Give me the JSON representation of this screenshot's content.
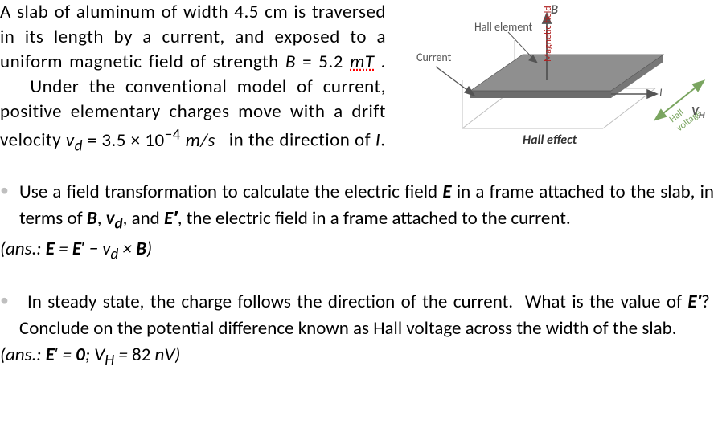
{
  "intro": {
    "line": "A slab of aluminum of width 4.5&nbsp;cm is traversed in its length by a current, and exposed to a uniform magnetic field of strength <span style='font-style:italic'>B</span>&nbsp;=&nbsp;5.2&nbsp;<span style='font-style:italic'><span style='text-decoration: underline dotted red;'>mT</span></span>&nbsp;. &nbsp;&nbsp;&nbsp;Under the conventional model of current, positive elementary charges move with a drift velocity <span class='nowrap'><span style='font-style:italic'>v<sub>d</sub></span>&nbsp;=&nbsp;3.5&nbsp;×&nbsp;10<sup>&minus;4</sup>&nbsp;<span style='font-style:italic'>m/s</span></span> &nbsp;&nbsp;in the direction of <span style='font-style:italic'>I</span>."
  },
  "q1": {
    "text": "Use a field transformation to calculate the electric field <b><i>E</i></b> in a frame attached to the slab, in terms of <b><i>B</i></b>, <b><i>v<sub>d</sub></i></b>, and <b><i>E&prime;</i></b>, the electric field in a frame attached to the current.",
    "ans": "(ans.: <b>E</b> = <b>E</b><span style='font-style:normal'>&prime;</span> &minus; v<sub>d</sub> × <b>B</b>)"
  },
  "q2": {
    "text": "In steady state, the charge follows the direction of the current.&nbsp; What is the value of <b><i>E&prime;</i></b>?&nbsp; Conclude on the potential difference known as Hall voltage across the width of the slab.",
    "ans": "(ans.: <b>E</b><span style='font-style:normal'>&prime;</span> = <b>0</b>; V<sub>H</sub> = <span style='font-style:normal'>82</span> nV)"
  },
  "figure": {
    "labels": {
      "B": "B",
      "hall_element": "Hall element",
      "current": "Current",
      "I": "I",
      "magnetic_field": "Magnetic field",
      "hall_voltage": "Hall voltage",
      "VH_html": "V<sub>H</sub>",
      "hall_effect": "Hall effect"
    },
    "colors": {
      "slab_fill": "#8a8a8a",
      "slab_side": "#6d6d6d",
      "outline": "#777777",
      "arrow": "#555555",
      "text": "#555555",
      "green_arrow": "#7aa560",
      "red_text": "#b02020"
    }
  }
}
